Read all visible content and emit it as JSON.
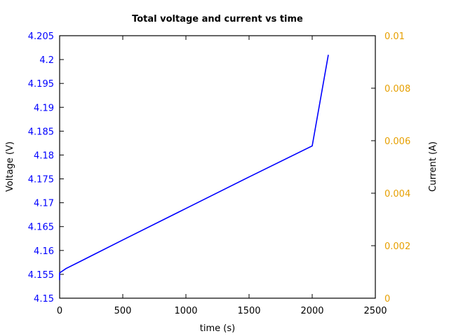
{
  "chart_data": {
    "type": "line",
    "title": "Total voltage and current vs time",
    "xlabel": "time (s)",
    "ylabel": "Voltage (V)",
    "y2label": "Current (A)",
    "xlim": [
      0,
      2500
    ],
    "ylim": [
      4.15,
      4.205
    ],
    "y2lim": [
      0,
      0.01
    ],
    "x_ticks": [
      "0",
      "500",
      "1000",
      "1500",
      "2000",
      "2500"
    ],
    "y_ticks": [
      "4.15",
      "4.155",
      "4.16",
      "4.165",
      "4.17",
      "4.175",
      "4.18",
      "4.185",
      "4.19",
      "4.195",
      "4.2",
      "4.205"
    ],
    "y2_ticks": [
      "0",
      "0.002",
      "0.004",
      "0.006",
      "0.008",
      "0.01"
    ],
    "grid": false,
    "legend": null,
    "colors": {
      "voltage": "#0000ff",
      "current_axis": "#e69f00",
      "frame": "#000000"
    },
    "series": [
      {
        "name": "Voltage",
        "axis": "left",
        "color": "#0000ff",
        "x": [
          0,
          0,
          50,
          200,
          500,
          1000,
          1500,
          2000,
          2128
        ],
        "y": [
          4.1538,
          4.1553,
          4.1562,
          4.1582,
          4.1622,
          4.1688,
          4.1754,
          4.1819,
          4.201
        ]
      }
    ]
  }
}
